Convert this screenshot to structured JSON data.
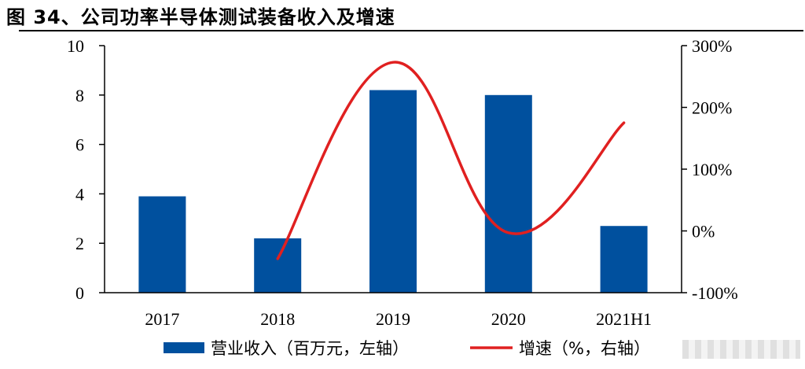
{
  "title": "图 34、公司功率半导体测试装备收入及增速",
  "chart_data": {
    "type": "bar",
    "categories": [
      "2017",
      "2018",
      "2019",
      "2020",
      "2021H1"
    ],
    "series": [
      {
        "name": "营业收入（百万元，左轴）",
        "type": "bar",
        "axis": "left",
        "values": [
          3.9,
          2.2,
          8.2,
          8.0,
          2.7
        ]
      },
      {
        "name": "增速（%，右轴）",
        "type": "line",
        "axis": "right",
        "values": [
          null,
          -45,
          273,
          -3,
          175
        ]
      }
    ],
    "left_axis": {
      "ylim": [
        0,
        10
      ],
      "ticks": [
        "0",
        "2",
        "4",
        "6",
        "8",
        "10"
      ]
    },
    "right_axis": {
      "ylim": [
        -100,
        300
      ],
      "ticks": [
        "-100%",
        "0%",
        "100%",
        "200%",
        "300%"
      ]
    },
    "legend_position": "bottom",
    "colors": {
      "bar": "#00509E",
      "line": "#E02020"
    }
  }
}
